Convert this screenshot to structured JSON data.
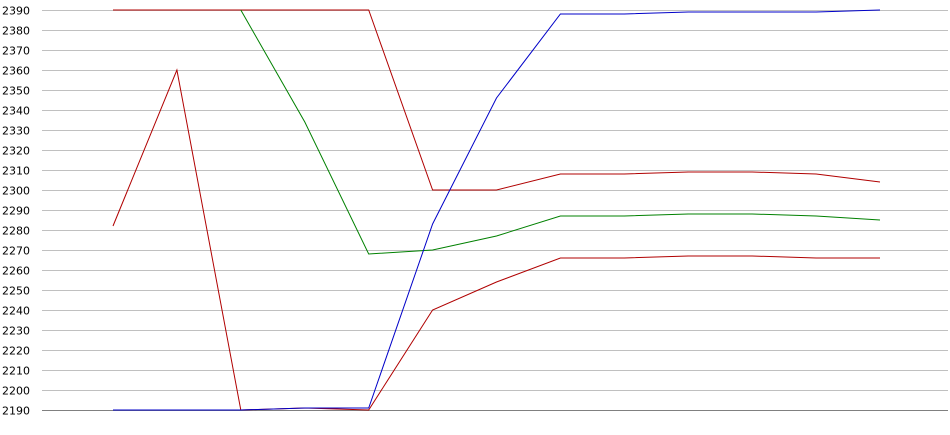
{
  "chart_data": {
    "type": "line",
    "title": "",
    "xlabel": "",
    "ylabel": "",
    "ylim": [
      2190,
      2390
    ],
    "yticks": [
      2390,
      2380,
      2370,
      2360,
      2350,
      2340,
      2330,
      2320,
      2310,
      2300,
      2290,
      2280,
      2270,
      2260,
      2250,
      2240,
      2230,
      2220,
      2210,
      2200,
      2190
    ],
    "grid": true,
    "legend": "none",
    "x": [
      0,
      1,
      2,
      3,
      4,
      5,
      6,
      7,
      8,
      9,
      10,
      11,
      12
    ],
    "series": [
      {
        "color": "#b00000",
        "values": [
          2390,
          2390,
          2390,
          2390,
          2390,
          2300,
          2300,
          2308,
          2308,
          2309,
          2309,
          2308,
          2304
        ]
      },
      {
        "color": "#b00000",
        "values": [
          2282,
          2360,
          2190,
          2191,
          2190,
          2240,
          2254,
          2266,
          2266,
          2267,
          2267,
          2266,
          2266
        ]
      },
      {
        "color": "#008000",
        "values": [
          null,
          null,
          2390,
          2334,
          2268,
          2270,
          2277,
          2287,
          2287,
          2288,
          2288,
          2287,
          2285
        ]
      },
      {
        "color": "#0000c8",
        "values": [
          2190,
          2190,
          2190,
          2191,
          2191,
          2283,
          2346,
          2388,
          2388,
          2389,
          2389,
          2389,
          2390
        ]
      }
    ]
  }
}
